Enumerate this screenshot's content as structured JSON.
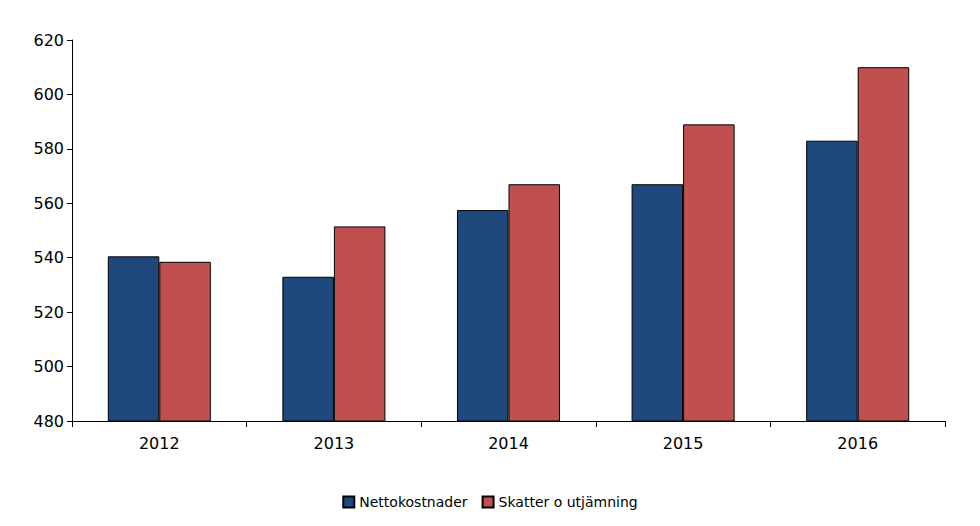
{
  "chart_data": {
    "type": "bar",
    "categories": [
      "2012",
      "2013",
      "2014",
      "2015",
      "2016"
    ],
    "series": [
      {
        "name": "Nettokostnader",
        "color": "#1f497d",
        "values": [
          540.5,
          533,
          557.5,
          567,
          583
        ]
      },
      {
        "name": "Skatter o utjämning",
        "color": "#c0504d",
        "values": [
          538.5,
          551.5,
          567,
          589,
          610
        ]
      }
    ],
    "ylim": [
      480,
      620
    ],
    "yticks": [
      480,
      500,
      520,
      540,
      560,
      580,
      600,
      620
    ],
    "grid": false,
    "legend": "bottom"
  }
}
